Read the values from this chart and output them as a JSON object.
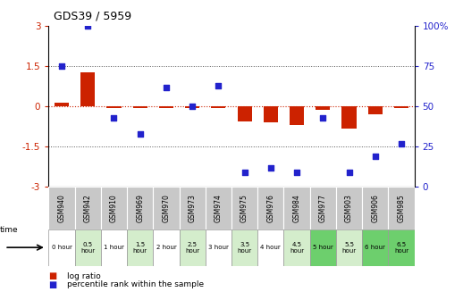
{
  "title": "GDS39 / 5959",
  "samples": [
    "GSM940",
    "GSM942",
    "GSM910",
    "GSM969",
    "GSM970",
    "GSM973",
    "GSM974",
    "GSM975",
    "GSM976",
    "GSM984",
    "GSM977",
    "GSM903",
    "GSM906",
    "GSM985"
  ],
  "time_labels": [
    "0 hour",
    "0.5\nhour",
    "1 hour",
    "1.5\nhour",
    "2 hour",
    "2.5\nhour",
    "3 hour",
    "3.5\nhour",
    "4 hour",
    "4.5\nhour",
    "5 hour",
    "5.5\nhour",
    "6 hour",
    "6.5\nhour"
  ],
  "time_colors": [
    "#ffffff",
    "#d4edcc",
    "#ffffff",
    "#d4edcc",
    "#ffffff",
    "#d4edcc",
    "#ffffff",
    "#d4edcc",
    "#ffffff",
    "#d4edcc",
    "#6dcf6d",
    "#d4edcc",
    "#6dcf6d",
    "#6dcf6d"
  ],
  "log_ratio": [
    0.15,
    1.28,
    -0.04,
    -0.06,
    -0.04,
    -0.07,
    -0.05,
    -0.55,
    -0.58,
    -0.68,
    -0.12,
    -0.82,
    -0.28,
    -0.04
  ],
  "percentile": [
    75,
    100,
    43,
    33,
    62,
    50,
    63,
    9,
    12,
    9,
    43,
    9,
    19,
    27
  ],
  "ylim_left": [
    -3,
    3
  ],
  "ylim_right": [
    0,
    100
  ],
  "left_ticks": [
    -3,
    -1.5,
    0,
    1.5,
    3
  ],
  "right_ticks": [
    0,
    25,
    50,
    75,
    100
  ],
  "bar_color": "#cc2200",
  "dot_color": "#2222cc",
  "hline_color": "#cc2200",
  "dotted_color": "#555555",
  "legend_red": "log ratio",
  "legend_blue": "percentile rank within the sample",
  "gsm_bg": "#c8c8c8",
  "gsm_edge": "#888888",
  "bg_color": "#ffffff"
}
